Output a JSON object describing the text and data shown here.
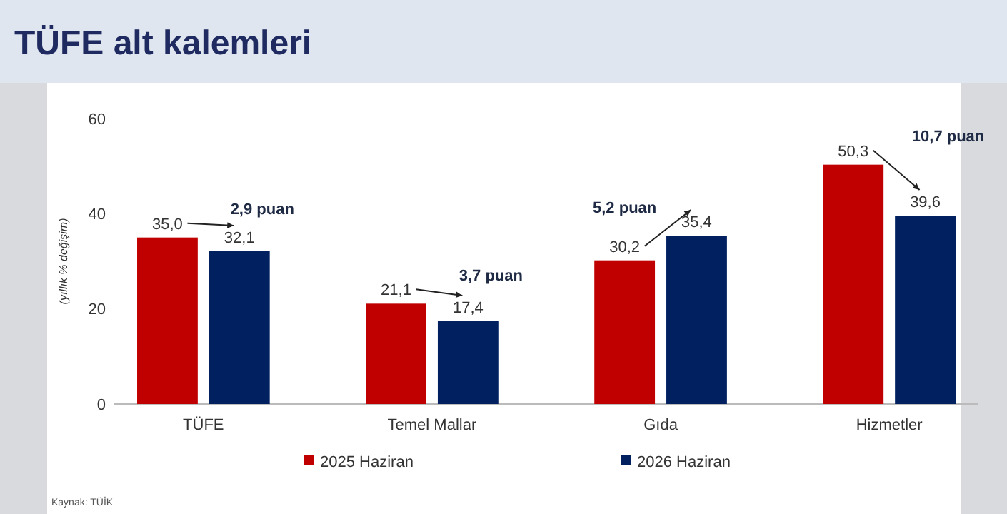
{
  "chart_data": {
    "type": "bar",
    "title": "TÜFE alt kalemleri",
    "ylabel": "(yıllık % değişim)",
    "categories": [
      "TÜFE",
      "Temel Mallar",
      "Gıda",
      "Hizmetler"
    ],
    "series": [
      {
        "name": "2025 Haziran",
        "color": "#c00000",
        "values": [
          35.0,
          21.1,
          30.2,
          50.3
        ],
        "value_labels": [
          "35,0",
          "21,1",
          "30,2",
          "50,3"
        ]
      },
      {
        "name": "2026 Haziran",
        "color": "#002060",
        "values": [
          32.1,
          17.4,
          35.4,
          39.6
        ],
        "value_labels": [
          "32,1",
          "17,4",
          "35,4",
          "39,6"
        ]
      }
    ],
    "ylim": [
      0,
      60
    ],
    "yticks": [
      0,
      20,
      40,
      60
    ],
    "grid": false,
    "legend": "bottom",
    "annotations": [
      "2,9 puan",
      "3,7 puan",
      "5,2 puan",
      "10,7 puan",
      "Kaynak: TÜİK"
    ]
  }
}
